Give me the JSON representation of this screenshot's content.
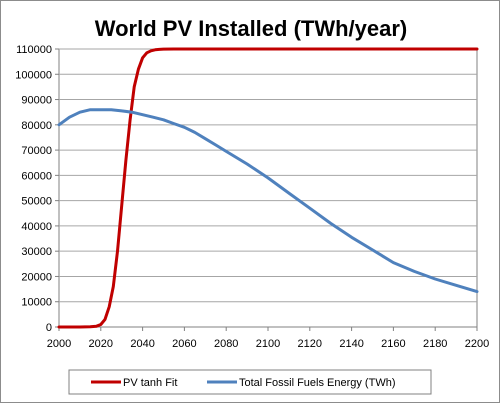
{
  "chart_data": {
    "type": "line",
    "title": "World PV Installed (TWh/year)",
    "xlabel": "",
    "ylabel": "",
    "xlim": [
      2000,
      2200
    ],
    "ylim": [
      0,
      110000
    ],
    "x_ticks": [
      2000,
      2020,
      2040,
      2060,
      2080,
      2100,
      2120,
      2140,
      2160,
      2180,
      2200
    ],
    "y_ticks": [
      0,
      10000,
      20000,
      30000,
      40000,
      50000,
      60000,
      70000,
      80000,
      90000,
      100000,
      110000
    ],
    "grid": "horizontal",
    "legend_position": "bottom",
    "series": [
      {
        "name": "PV tanh Fit",
        "color": "#c00000",
        "x": [
          2000,
          2010,
          2015,
          2018,
          2020,
          2022,
          2024,
          2026,
          2028,
          2030,
          2032,
          2034,
          2036,
          2038,
          2040,
          2042,
          2044,
          2046,
          2048,
          2050,
          2055,
          2060,
          2080,
          2100,
          2120,
          2140,
          2160,
          2180,
          2200
        ],
        "values": [
          0,
          0,
          100,
          300,
          1000,
          3000,
          8000,
          16000,
          30000,
          48000,
          66000,
          82000,
          95000,
          102000,
          106500,
          108500,
          109300,
          109700,
          109850,
          109950,
          110000,
          110000,
          110000,
          110000,
          110000,
          110000,
          110000,
          110000,
          110000
        ]
      },
      {
        "name": "Total Fossil Fuels Energy (TWh)",
        "color": "#4f81bd",
        "x": [
          2000,
          2005,
          2010,
          2015,
          2020,
          2025,
          2030,
          2035,
          2040,
          2045,
          2050,
          2055,
          2060,
          2065,
          2070,
          2075,
          2080,
          2090,
          2100,
          2110,
          2120,
          2130,
          2140,
          2150,
          2160,
          2170,
          2180,
          2190,
          2200
        ],
        "values": [
          80000,
          83000,
          85000,
          86000,
          86000,
          86000,
          85500,
          85000,
          84000,
          83000,
          82000,
          80500,
          79000,
          77000,
          74500,
          72000,
          69500,
          64500,
          59000,
          53000,
          47000,
          41000,
          35500,
          30500,
          25500,
          22000,
          19000,
          16500,
          14000
        ]
      }
    ]
  }
}
